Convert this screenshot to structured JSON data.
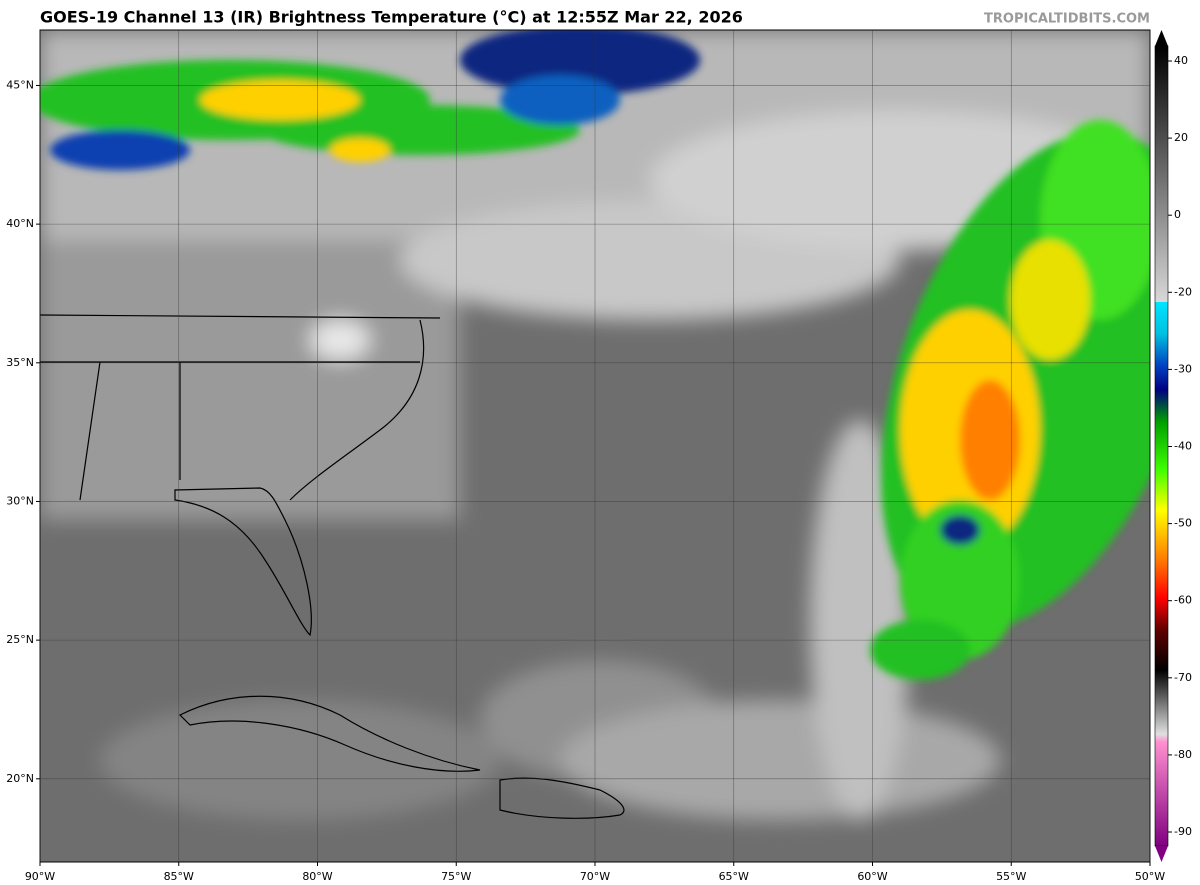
{
  "header": {
    "title": "GOES-19 Channel 13 (IR) Brightness Temperature (°C) at 12:55Z Mar 22, 2026",
    "watermark": "TROPICALTIDBITS.COM"
  },
  "map": {
    "lonlim": [
      -90,
      -50
    ],
    "latlim": [
      17,
      47
    ],
    "lonticks": [
      {
        "value": -90,
        "label": "90°W"
      },
      {
        "value": -85,
        "label": "85°W"
      },
      {
        "value": -80,
        "label": "80°W"
      },
      {
        "value": -75,
        "label": "75°W"
      },
      {
        "value": -70,
        "label": "70°W"
      },
      {
        "value": -65,
        "label": "65°W"
      },
      {
        "value": -60,
        "label": "60°W"
      },
      {
        "value": -55,
        "label": "55°W"
      },
      {
        "value": -50,
        "label": "50°W"
      }
    ],
    "latticks": [
      {
        "value": 20,
        "label": "20°N"
      },
      {
        "value": 25,
        "label": "25°N"
      },
      {
        "value": 30,
        "label": "30°N"
      },
      {
        "value": 35,
        "label": "35°N"
      },
      {
        "value": 40,
        "label": "40°N"
      },
      {
        "value": 45,
        "label": "45°N"
      }
    ]
  },
  "colorbar": {
    "ticks": [
      40,
      20,
      0,
      -20,
      -30,
      -40,
      -50,
      -60,
      -70,
      -80,
      -90
    ]
  }
}
